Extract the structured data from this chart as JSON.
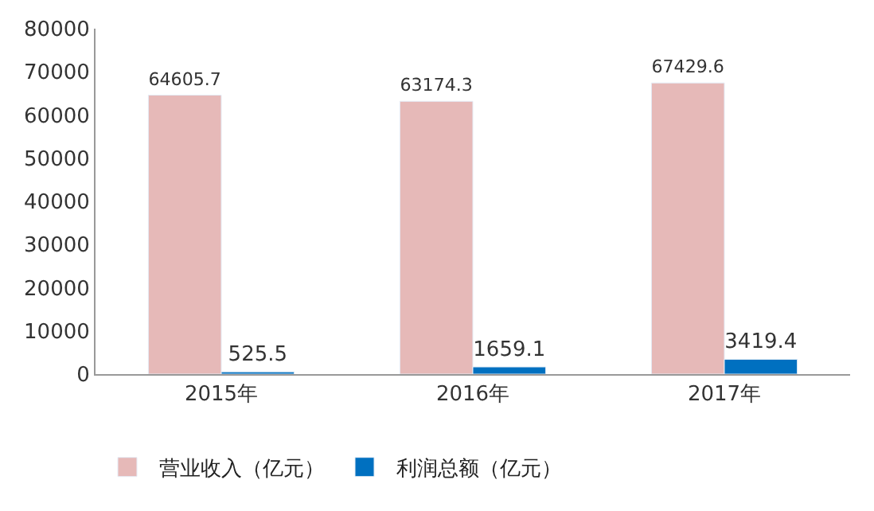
{
  "chart_data": {
    "type": "bar",
    "categories": [
      "2015年",
      "2016年",
      "2017年"
    ],
    "series": [
      {
        "name": "营业收入（亿元）",
        "color": "#e6b9b8",
        "values": [
          64605.7,
          63174.3,
          67429.6
        ]
      },
      {
        "name": "利润总额（亿元）",
        "color": "#0070c0",
        "values": [
          525.5,
          1659.1,
          3419.4
        ]
      }
    ],
    "ylim": [
      0,
      80000
    ],
    "yticks": [
      0,
      10000,
      20000,
      30000,
      40000,
      50000,
      60000,
      70000,
      80000
    ],
    "data_labels": true,
    "legend": "bottom"
  }
}
